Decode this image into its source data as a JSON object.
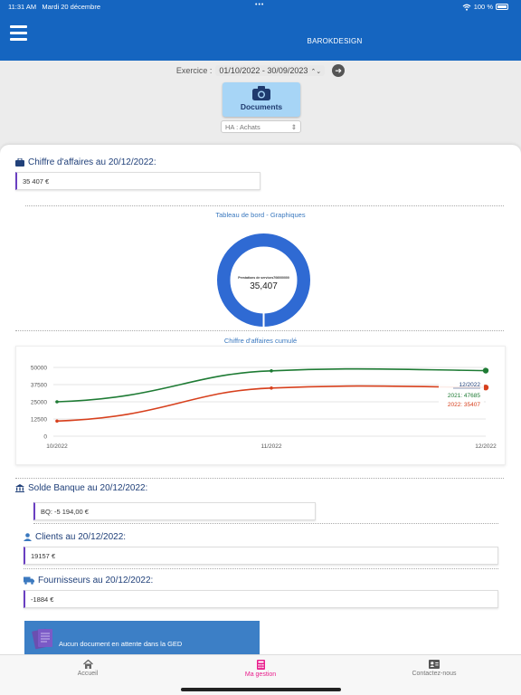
{
  "status": {
    "time": "11:31 AM",
    "date": "Mardi 20 décembre",
    "dots": "•••",
    "battery": "100 %"
  },
  "header": {
    "title": "BAROKDESIGN"
  },
  "exercice": {
    "label": "Exercice :",
    "value": "01/10/2022 - 30/09/2023"
  },
  "documents": {
    "label": "Documents",
    "select_value": "HA : Achats"
  },
  "chiffre": {
    "title": "Chiffre d'affaires au 20/12/2022:",
    "value": "35 407 €"
  },
  "dashboard": {
    "title": "Tableau de bord - Graphiques",
    "donut": {
      "label": "Prestations de services706000000",
      "value": "35,407"
    }
  },
  "chart_data": {
    "type": "line",
    "title": "Chiffre d'affaires cumulé",
    "categories": [
      "10/2022",
      "11/2022",
      "12/2022"
    ],
    "y_ticks": [
      "50000",
      "37500",
      "25000",
      "12500",
      "0"
    ],
    "ylim": [
      0,
      50000
    ],
    "series": [
      {
        "name": "2021",
        "color": "#1e7b34",
        "values": [
          25000,
          47500,
          47685
        ]
      },
      {
        "name": "2022",
        "color": "#d7401d",
        "values": [
          11000,
          35000,
          35407
        ]
      }
    ],
    "tooltip": {
      "title": "12/2022",
      "line1": "2021: 47685",
      "line2": "2022: 35407"
    }
  },
  "banque": {
    "title": "Solde Banque au 20/12/2022:",
    "value": "BQ: -5 194,00 €"
  },
  "clients": {
    "title": "Clients au 20/12/2022:",
    "value": "19157 €"
  },
  "fournisseurs": {
    "title": "Fournisseurs au 20/12/2022:",
    "value": "-1884 €"
  },
  "ged": {
    "text": "Aucun document en attente dans la GED"
  },
  "tabs": [
    {
      "label": "Accueil",
      "icon": "home-icon"
    },
    {
      "label": "Ma gestion",
      "icon": "calculator-icon"
    },
    {
      "label": "Contactez-nous",
      "icon": "contact-card-icon"
    }
  ],
  "colors": {
    "header": "#1565c0",
    "donut": "#2f6ad3",
    "accent": "#e91e8c"
  }
}
